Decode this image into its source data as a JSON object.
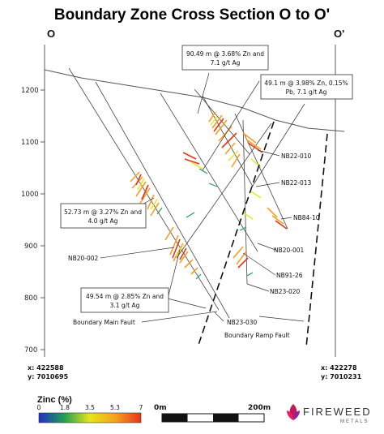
{
  "title": "Boundary Zone Cross Section O to O'",
  "section_start_label": "O",
  "section_end_label": "O'",
  "elevation_ticks": [
    "1200",
    "1100",
    "1000",
    "900",
    "800",
    "700"
  ],
  "drillholes": [
    "NB22-010",
    "NB22-013",
    "NB84-10",
    "NB20-001",
    "NB91-26",
    "NB23-020",
    "NB23-030",
    "NB20-002"
  ],
  "callouts": {
    "c1_line1": "90.49 m @ 3.68% Zn and",
    "c1_line2": "7.1 g/t Ag",
    "c2_line1": "49.1 m @ 3.98% Zn, 0.15%",
    "c2_line2": "Pb, 7.1 g/t Ag",
    "c3_line1": "52.73 m @ 3.27% Zn and",
    "c3_line2": "4.0 g/t Ag",
    "c4_line1": "49.54 m @ 2.85% Zn and",
    "c4_line2": "3.1 g/t Ag"
  },
  "faults": {
    "main": "Boundary Main Fault",
    "ramp": "Boundary Ramp Fault"
  },
  "coords": {
    "left_x": "x: 422588",
    "left_y": "y: 7010695",
    "right_x": "x: 422278",
    "right_y": "y: 7010231"
  },
  "legend": {
    "title": "Zinc (%)",
    "ticks": [
      "0",
      "1.8",
      "3.5",
      "5.3",
      "7"
    ],
    "colors": [
      "#2233cc",
      "#22aa55",
      "#e6e619",
      "#f5a623",
      "#e8331a"
    ]
  },
  "scale": {
    "start": "0m",
    "end": "200m"
  },
  "logo": {
    "name": "FIREWEED",
    "sub": "METALS"
  }
}
